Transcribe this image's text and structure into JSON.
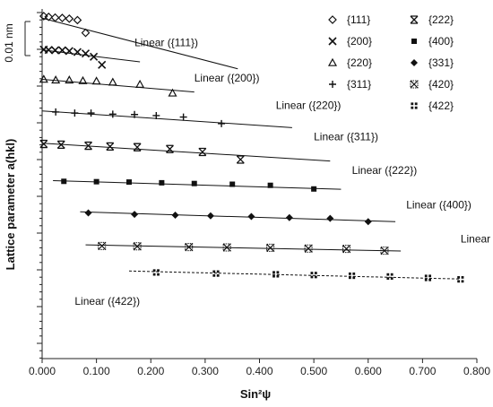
{
  "chart_data": {
    "type": "scatter",
    "xlabel": "Sin²ψ",
    "ylabel": "Lattice parameter a(hkl)",
    "scale_bar_label": "0.01 nm",
    "xlim": [
      0,
      0.8
    ],
    "x_ticks": [
      "0.000",
      "0.100",
      "0.200",
      "0.300",
      "0.400",
      "0.500",
      "0.600",
      "0.700",
      "0.800"
    ],
    "grid": false,
    "legend_position": "top-right",
    "series": [
      {
        "name": "{111}",
        "marker": "diamond-open",
        "fit_label": "Linear ({111})",
        "fit_style": "solid",
        "x": [
          0.003,
          0.012,
          0.024,
          0.037,
          0.05,
          0.065,
          0.08
        ],
        "y": [
          0.0,
          0.2,
          0.4,
          0.5,
          0.7,
          1.1,
          4.6
        ],
        "fit": [
          0.0,
          0.36,
          0.55,
          14.5
        ]
      },
      {
        "name": "{200}",
        "marker": "x",
        "fit_label": "Linear ({200})",
        "fit_style": "solid",
        "x": [
          0.003,
          0.012,
          0.024,
          0.037,
          0.05,
          0.065,
          0.08,
          0.095,
          0.11
        ],
        "y": [
          9.2,
          9.3,
          9.4,
          9.4,
          9.6,
          9.9,
          10.3,
          11.2,
          13.4
        ],
        "fit": [
          0.0,
          0.18,
          9.3,
          12.6
        ]
      },
      {
        "name": "{220}",
        "marker": "triangle-open",
        "fit_label": "Linear ({220})",
        "fit_style": "solid",
        "x": [
          0.003,
          0.025,
          0.05,
          0.075,
          0.1,
          0.13,
          0.18,
          0.24
        ],
        "y": [
          17.4,
          17.6,
          17.6,
          17.8,
          17.9,
          18.2,
          18.8,
          21.2
        ],
        "fit": [
          0.0,
          0.28,
          17.4,
          20.9
        ]
      },
      {
        "name": "{311}",
        "marker": "plus",
        "fit_label": "Linear ({311})",
        "fit_style": "solid",
        "x": [
          0.025,
          0.06,
          0.09,
          0.13,
          0.17,
          0.21,
          0.26,
          0.33
        ],
        "y": [
          26.4,
          26.7,
          26.7,
          27.0,
          27.1,
          27.4,
          27.8,
          29.6
        ],
        "fit": [
          0.0,
          0.46,
          26.1,
          30.7
        ]
      },
      {
        "name": "{222}",
        "marker": "asterisk",
        "fit_label": "Linear ({222})",
        "fit_style": "solid",
        "x": [
          0.003,
          0.035,
          0.085,
          0.125,
          0.175,
          0.235,
          0.295,
          0.365
        ],
        "y": [
          35.2,
          35.4,
          35.7,
          35.9,
          36.1,
          36.6,
          37.4,
          39.5
        ],
        "fit": [
          0.0,
          0.53,
          35.0,
          39.9
        ]
      },
      {
        "name": "{400}",
        "marker": "square",
        "fit_label": "Linear ({400})",
        "fit_style": "solid",
        "x": [
          0.04,
          0.1,
          0.16,
          0.22,
          0.28,
          0.35,
          0.42,
          0.5
        ],
        "y": [
          45.5,
          45.6,
          45.7,
          45.9,
          46.1,
          46.3,
          46.6,
          47.6
        ],
        "fit": [
          0.02,
          0.55,
          45.3,
          47.7
        ]
      },
      {
        "name": "{331}",
        "marker": "diamond",
        "fit_label": "Linear ({331})",
        "fit_style": "solid",
        "x": [
          0.085,
          0.17,
          0.245,
          0.31,
          0.385,
          0.455,
          0.53,
          0.6
        ],
        "y": [
          54.2,
          54.6,
          54.8,
          55.0,
          55.2,
          55.5,
          55.7,
          56.6
        ],
        "fit": [
          0.07,
          0.65,
          53.9,
          56.6
        ]
      },
      {
        "name": "{420}",
        "marker": "circle-x",
        "fit_label": "Linear ({420})",
        "fit_style": "solid",
        "x": [
          0.11,
          0.175,
          0.27,
          0.34,
          0.42,
          0.49,
          0.56,
          0.63
        ],
        "y": [
          63.3,
          63.4,
          63.6,
          63.7,
          63.8,
          64.0,
          64.1,
          64.6
        ],
        "fit": [
          0.08,
          0.66,
          63.0,
          64.7
        ]
      },
      {
        "name": "{422}",
        "marker": "dotted-square",
        "fit_label": "Linear ({422})",
        "fit_style": "dashed",
        "x": [
          0.21,
          0.32,
          0.43,
          0.5,
          0.57,
          0.64,
          0.71,
          0.77
        ],
        "y": [
          70.6,
          70.9,
          71.1,
          71.3,
          71.5,
          71.7,
          72.1,
          72.5
        ],
        "fit": [
          0.16,
          0.77,
          70.2,
          72.4
        ]
      }
    ]
  }
}
